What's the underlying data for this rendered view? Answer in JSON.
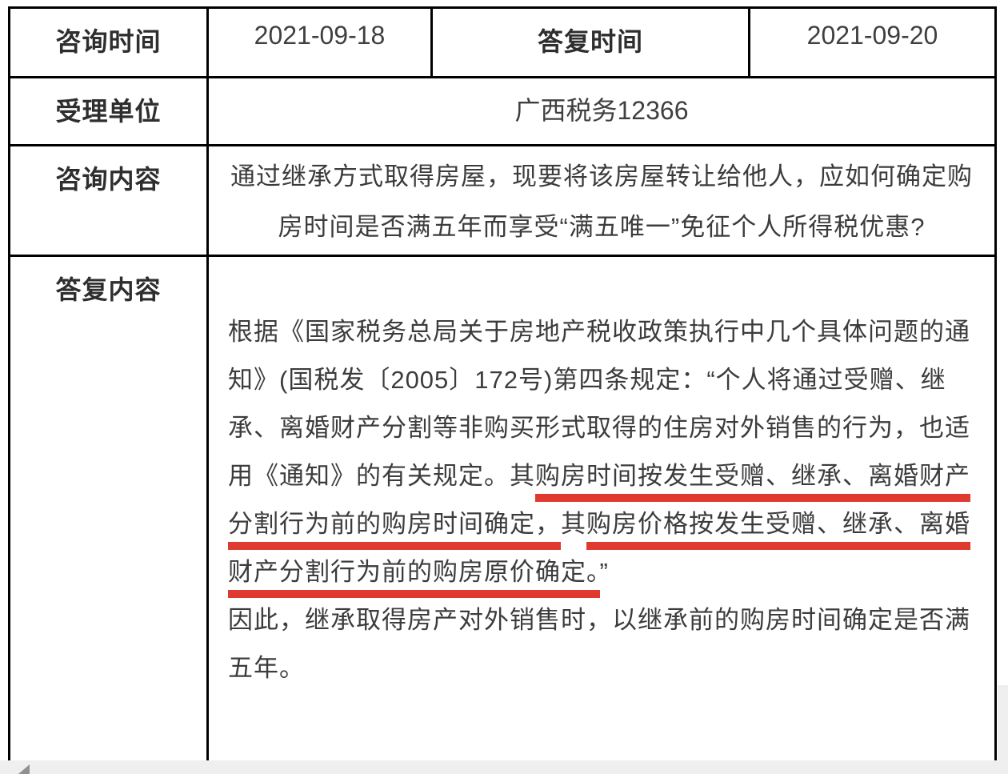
{
  "table": {
    "row1": {
      "label1": "咨询时间",
      "value1": "2021-09-18",
      "label2": "答复时间",
      "value2": "2021-09-20"
    },
    "row2": {
      "label": "受理单位",
      "value": "广西税务12366"
    },
    "row3": {
      "label": "咨询内容",
      "lines": [
        "通过继承方式取得房屋，现要将该房屋转让给他人，应如何确定购",
        "房时间是否满五年而享受“满五唯一”免征个人所得税优惠?"
      ]
    },
    "row4": {
      "label": "答复内容",
      "lines": [
        [
          {
            "text": "根据《国家税务总局关于房地产税收政策执行中几个具体问题的通",
            "underline": false
          }
        ],
        [
          {
            "text": "知》(国税发〔2005〕172号)第四条规定：“个人将通过受赠、继",
            "underline": false
          }
        ],
        [
          {
            "text": "承、离婚财产分割等非购买形式取得的住房对外销售的行为，也适",
            "underline": false
          }
        ],
        [
          {
            "text": "用《通知》的有关规定。其",
            "underline": false
          },
          {
            "text": "购房时间按发生受赠、继承、离婚财产",
            "underline": true
          }
        ],
        [
          {
            "text": "分割行为前的购房时间确定，",
            "underline": true
          },
          {
            "text": "其",
            "underline": false
          },
          {
            "text": "购房价格按发生受赠、继承、离婚",
            "underline": true
          }
        ],
        [
          {
            "text": "财产分割行为前的购房原价确定。",
            "underline": true
          },
          {
            "text": "”",
            "underline": false
          }
        ],
        [
          {
            "text": "因此，继承取得房产对外销售时，以继承前的购房时间确定是否满",
            "underline": false
          }
        ],
        [
          {
            "text": "五年。",
            "underline": false
          }
        ]
      ]
    }
  },
  "colors": {
    "underline_red": "#e03a30",
    "border_black": "#000000",
    "strip_gray": "#efefef"
  }
}
